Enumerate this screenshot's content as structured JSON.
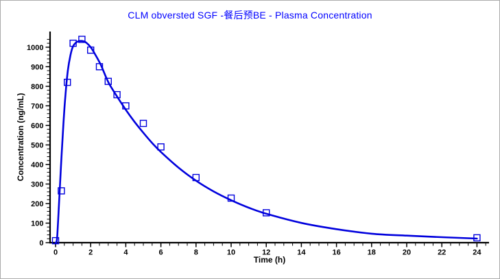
{
  "window": {
    "background_color": "#ffffff",
    "border_color": "#aaaaaa"
  },
  "chart_data": {
    "type": "line",
    "title": "CLM obversted SGF -餐后预BE - Plasma Concentration",
    "title_color": "#0000ff",
    "xlabel": "Time (h)",
    "ylabel": "Concentration (ng/mL)",
    "xlim": [
      0,
      25
    ],
    "ylim": [
      0,
      1080
    ],
    "grid": false,
    "legend": "none",
    "axis_color": "#000000",
    "x_major_ticks": [
      0,
      2,
      4,
      6,
      8,
      10,
      12,
      14,
      16,
      18,
      20,
      22,
      24
    ],
    "x_minor_tick_step": 0.5,
    "y_major_ticks": [
      0,
      100,
      200,
      300,
      400,
      500,
      600,
      700,
      800,
      900,
      1000
    ],
    "y_minor_tick_step": 20,
    "series": [
      {
        "name": "observed-points",
        "kind": "scatter",
        "marker": "open-square",
        "marker_size": 9,
        "color": "#0000dd",
        "x": [
          0,
          0.33,
          0.67,
          1,
          1.5,
          2,
          2.5,
          3,
          3.5,
          4,
          5,
          6,
          8,
          10,
          12,
          24
        ],
        "y": [
          10,
          265,
          820,
          1020,
          1040,
          985,
          900,
          825,
          757,
          700,
          610,
          490,
          333,
          228,
          153,
          25
        ]
      },
      {
        "name": "fitted-curve",
        "kind": "line",
        "color": "#0000dd",
        "line_width": 2.6,
        "x": [
          0,
          0.05,
          0.1,
          0.18,
          0.25,
          0.35,
          0.45,
          0.55,
          0.7,
          0.85,
          1,
          1.2,
          1.45,
          1.7,
          2,
          2.3,
          2.6,
          3,
          3.5,
          4,
          4.5,
          5,
          5.5,
          6,
          7,
          8,
          9,
          10,
          11,
          12,
          14,
          16,
          18,
          20,
          22,
          24
        ],
        "y": [
          0,
          2,
          40,
          170,
          290,
          460,
          610,
          740,
          880,
          960,
          1005,
          1026,
          1032,
          1026,
          1000,
          956,
          905,
          822,
          748,
          680,
          618,
          562,
          510,
          464,
          384,
          317,
          262,
          217,
          179,
          148,
          101,
          69,
          46,
          36,
          28,
          21
        ]
      }
    ]
  }
}
